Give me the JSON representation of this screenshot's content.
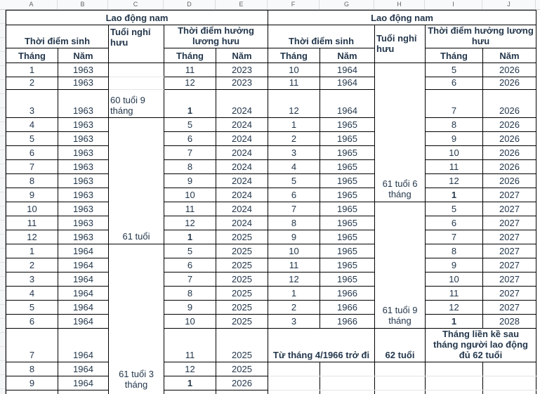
{
  "sheet": {
    "column_letters": [
      "A",
      "B",
      "C",
      "D",
      "E",
      "F",
      "G",
      "H",
      "I",
      "J"
    ]
  },
  "colors": {
    "border": "#000000",
    "grid_line": "#e2e4e3",
    "text": "#24374c",
    "column_strip_bg": "#f8f9fa",
    "column_strip_text": "#5f6368"
  },
  "table": {
    "left": {
      "group_title": "Lao động nam",
      "headers": {
        "birth": "Thời điểm sinh",
        "age": "Tuổi nghỉ hưu",
        "pension": "Thời điểm hưởng lương hưu",
        "month": "Tháng",
        "year": "Năm"
      },
      "age_groups": [
        "60 tuổi 9 tháng",
        "61 tuổi",
        "61 tuổi 3 tháng"
      ],
      "rows": [
        {
          "birth_month": "1",
          "birth_year": "1963",
          "pension_month": "11",
          "pension_year": "2023"
        },
        {
          "birth_month": "2",
          "birth_year": "1963",
          "pension_month": "12",
          "pension_year": "2023"
        },
        {
          "birth_month": "3",
          "birth_year": "1963",
          "pension_month": "1",
          "pension_year": "2024",
          "bold_month": true
        },
        {
          "birth_month": "4",
          "birth_year": "1963",
          "pension_month": "5",
          "pension_year": "2024"
        },
        {
          "birth_month": "5",
          "birth_year": "1963",
          "pension_month": "6",
          "pension_year": "2024"
        },
        {
          "birth_month": "6",
          "birth_year": "1963",
          "pension_month": "7",
          "pension_year": "2024"
        },
        {
          "birth_month": "7",
          "birth_year": "1963",
          "pension_month": "8",
          "pension_year": "2024"
        },
        {
          "birth_month": "8",
          "birth_year": "1963",
          "pension_month": "9",
          "pension_year": "2024"
        },
        {
          "birth_month": "9",
          "birth_year": "1963",
          "pension_month": "10",
          "pension_year": "2024"
        },
        {
          "birth_month": "10",
          "birth_year": "1963",
          "pension_month": "11",
          "pension_year": "2024"
        },
        {
          "birth_month": "11",
          "birth_year": "1963",
          "pension_month": "12",
          "pension_year": "2024"
        },
        {
          "birth_month": "12",
          "birth_year": "1963",
          "pension_month": "1",
          "pension_year": "2025",
          "bold_month": true
        },
        {
          "birth_month": "1",
          "birth_year": "1964",
          "pension_month": "5",
          "pension_year": "2025"
        },
        {
          "birth_month": "2",
          "birth_year": "1964",
          "pension_month": "6",
          "pension_year": "2025"
        },
        {
          "birth_month": "3",
          "birth_year": "1964",
          "pension_month": "7",
          "pension_year": "2025"
        },
        {
          "birth_month": "4",
          "birth_year": "1964",
          "pension_month": "8",
          "pension_year": "2025"
        },
        {
          "birth_month": "5",
          "birth_year": "1964",
          "pension_month": "9",
          "pension_year": "2025"
        },
        {
          "birth_month": "6",
          "birth_year": "1964",
          "pension_month": "10",
          "pension_year": "2025"
        },
        {
          "birth_month": "7",
          "birth_year": "1964",
          "pension_month": "11",
          "pension_year": "2025"
        },
        {
          "birth_month": "8",
          "birth_year": "1964",
          "pension_month": "12",
          "pension_year": "2025"
        },
        {
          "birth_month": "9",
          "birth_year": "1964",
          "pension_month": "1",
          "pension_year": "2026",
          "bold_month": true
        }
      ]
    },
    "right": {
      "group_title": "Lao động nam",
      "headers": {
        "birth": "Thời điểm sinh",
        "age": "Tuổi nghỉ hưu",
        "pension": "Thời điểm hưởng lương hưu",
        "month": "Tháng",
        "year": "Năm"
      },
      "age_groups": [
        "61 tuổi 6 tháng",
        "61 tuổi 9 tháng"
      ],
      "rows": [
        {
          "birth_month": "10",
          "birth_year": "1964",
          "pension_month": "5",
          "pension_year": "2026"
        },
        {
          "birth_month": "11",
          "birth_year": "1964",
          "pension_month": "6",
          "pension_year": "2026"
        },
        {
          "birth_month": "12",
          "birth_year": "1964",
          "pension_month": "7",
          "pension_year": "2026"
        },
        {
          "birth_month": "1",
          "birth_year": "1965",
          "pension_month": "8",
          "pension_year": "2026"
        },
        {
          "birth_month": "2",
          "birth_year": "1965",
          "pension_month": "9",
          "pension_year": "2026"
        },
        {
          "birth_month": "3",
          "birth_year": "1965",
          "pension_month": "10",
          "pension_year": "2026"
        },
        {
          "birth_month": "4",
          "birth_year": "1965",
          "pension_month": "11",
          "pension_year": "2026"
        },
        {
          "birth_month": "5",
          "birth_year": "1965",
          "pension_month": "12",
          "pension_year": "2026"
        },
        {
          "birth_month": "6",
          "birth_year": "1965",
          "pension_month": "1",
          "pension_year": "2027",
          "bold_month": true
        },
        {
          "birth_month": "7",
          "birth_year": "1965",
          "pension_month": "5",
          "pension_year": "2027"
        },
        {
          "birth_month": "8",
          "birth_year": "1965",
          "pension_month": "6",
          "pension_year": "2027"
        },
        {
          "birth_month": "9",
          "birth_year": "1965",
          "pension_month": "7",
          "pension_year": "2027"
        },
        {
          "birth_month": "10",
          "birth_year": "1965",
          "pension_month": "8",
          "pension_year": "2027"
        },
        {
          "birth_month": "11",
          "birth_year": "1965",
          "pension_month": "9",
          "pension_year": "2027"
        },
        {
          "birth_month": "12",
          "birth_year": "1965",
          "pension_month": "10",
          "pension_year": "2027"
        },
        {
          "birth_month": "1",
          "birth_year": "1966",
          "pension_month": "11",
          "pension_year": "2027"
        },
        {
          "birth_month": "2",
          "birth_year": "1966",
          "pension_month": "12",
          "pension_year": "2027"
        },
        {
          "birth_month": "3",
          "birth_year": "1966",
          "pension_month": "1",
          "pension_year": "2028",
          "bold_month": true
        }
      ],
      "final_row": {
        "birth": "Từ tháng 4/1966 trở đi",
        "age": "62 tuổi",
        "pension": "Tháng liền kề sau tháng người lao động đủ 62 tuổi"
      }
    }
  }
}
